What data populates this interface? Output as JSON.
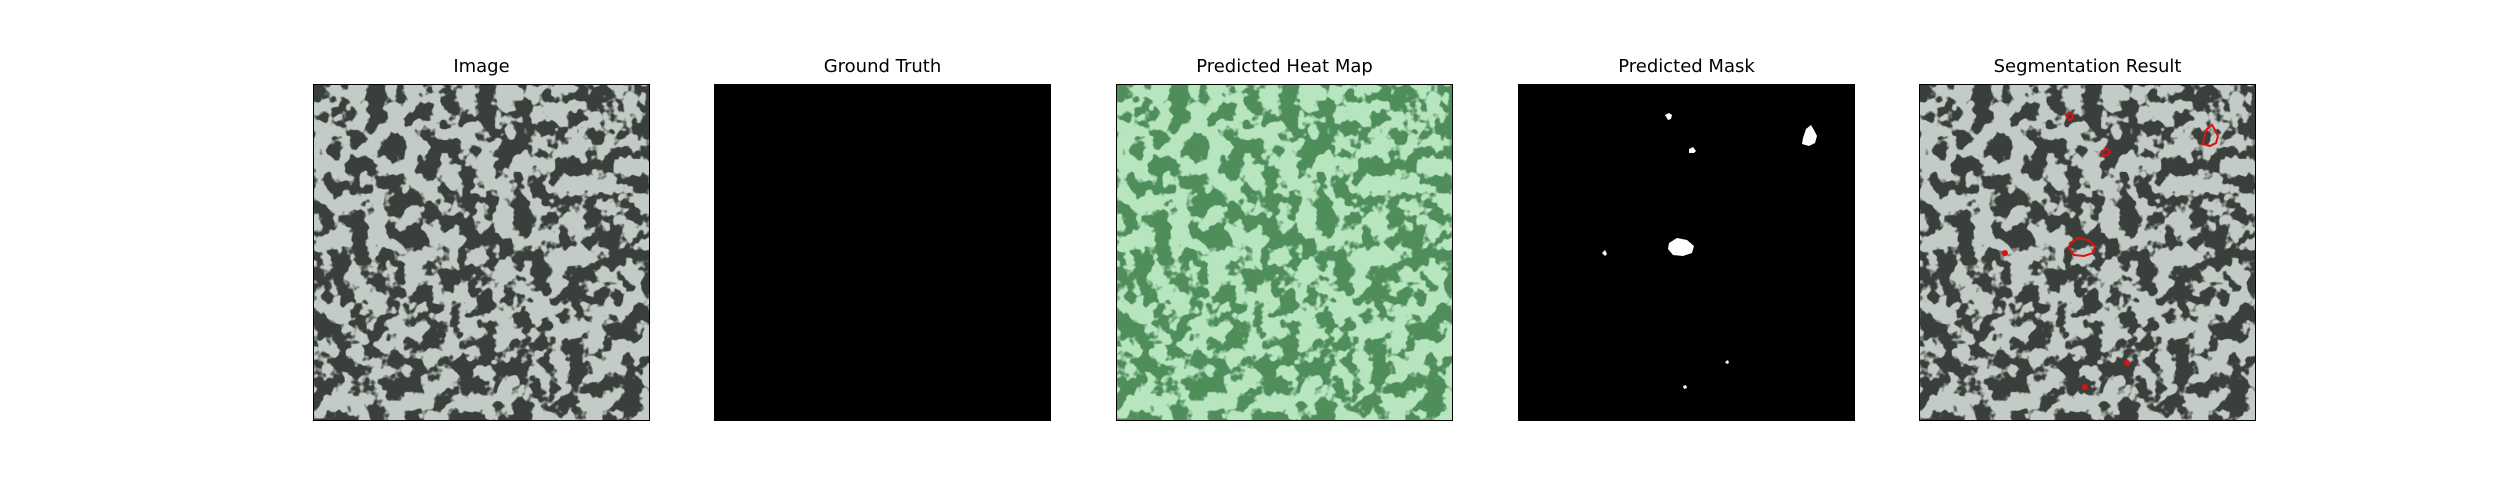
{
  "figure": {
    "panels": [
      {
        "title": "Image"
      },
      {
        "title": "Ground Truth"
      },
      {
        "title": "Predicted Heat Map"
      },
      {
        "title": "Predicted Mask"
      },
      {
        "title": "Segmentation Result"
      }
    ]
  },
  "colors": {
    "background": "#ffffff",
    "texture_light": "#8a9a8f",
    "texture_dark": "#3a3e3b",
    "heatmap_light": "#78c888",
    "heatmap_dark": "#4e8f5a",
    "mask_fg": "#ffffff",
    "mask_bg": "#000000",
    "contour": "#e01010"
  }
}
